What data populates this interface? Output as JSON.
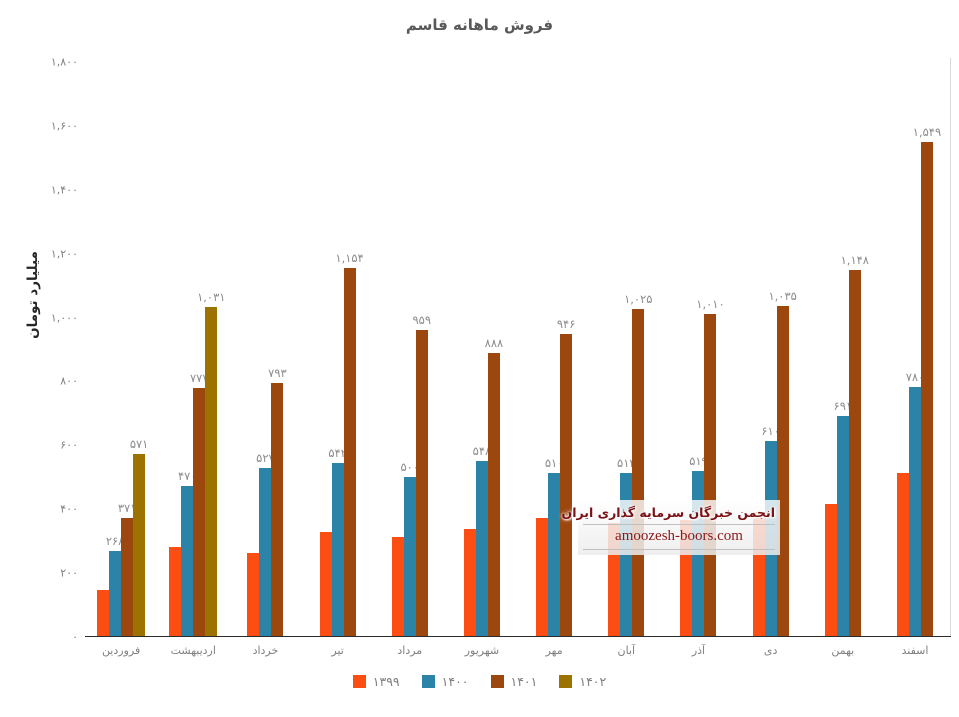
{
  "chart_data": {
    "type": "bar",
    "title": "فروش ماهانه قاسم",
    "ylabel": "میلیارد تومان",
    "categories": [
      "فروردین",
      "اردیبهشت",
      "خرداد",
      "تیر",
      "مرداد",
      "شهریور",
      "مهر",
      "آبان",
      "آذر",
      "دی",
      "بهمن",
      "اسفند"
    ],
    "ylim": [
      0,
      1800
    ],
    "grid": false,
    "legend_position": "bottom",
    "ytick_values": [
      0,
      200,
      400,
      600,
      800,
      1000,
      1200,
      1400,
      1600,
      1800
    ],
    "ytick_labels": [
      "۰",
      "۲۰۰",
      "۴۰۰",
      "۶۰۰",
      "۸۰۰",
      "۱,۰۰۰",
      "۱,۲۰۰",
      "۱,۴۰۰",
      "۱,۶۰۰",
      "۱,۸۰۰"
    ],
    "series": [
      {
        "key": "1399",
        "name": "۱۳۹۹",
        "color": "#FC4E12",
        "labels_shown": false,
        "values": [
          145,
          280,
          260,
          325,
          310,
          335,
          370,
          355,
          365,
          390,
          415,
          510
        ],
        "labels": [
          "",
          "",
          "",
          "",
          "",
          "",
          "",
          "",
          "",
          "",
          "",
          ""
        ]
      },
      {
        "key": "1400",
        "name": "۱۴۰۰",
        "color": "#2B83A8",
        "labels_shown": true,
        "values": [
          268,
          470,
          527,
          542,
          500,
          548,
          510,
          512,
          519,
          610,
          691,
          780
        ],
        "labels": [
          "۲۶۸",
          "۴۷۰",
          "۵۲۷",
          "۵۴۲",
          "۵۰۰",
          "۵۴۸",
          "۵۱۰",
          "۵۱۲",
          "۵۱۹",
          "۶۱۰",
          "۶۹۱",
          "۷۸۰"
        ]
      },
      {
        "key": "1401",
        "name": "۱۴۰۱",
        "color": "#9C470D",
        "labels_shown": true,
        "values": [
          371,
          777,
          793,
          1154,
          959,
          888,
          946,
          1025,
          1010,
          1035,
          1148,
          1549
        ],
        "labels": [
          "۳۷۱",
          "۷۷۷",
          "۷۹۳",
          "۱,۱۵۴",
          "۹۵۹",
          "۸۸۸",
          "۹۴۶",
          "۱,۰۲۵",
          "۱,۰۱۰",
          "۱,۰۳۵",
          "۱,۱۴۸",
          "۱,۵۴۹"
        ]
      },
      {
        "key": "1402",
        "name": "۱۴۰۲",
        "color": "#9C7300",
        "labels_shown": true,
        "values": [
          571,
          1031,
          null,
          null,
          null,
          null,
          null,
          null,
          null,
          null,
          null,
          null
        ],
        "labels": [
          "۵۷۱",
          "۱,۰۳۱",
          "",
          "",
          "",
          "",
          "",
          "",
          "",
          "",
          "",
          ""
        ]
      }
    ]
  },
  "watermark": {
    "title": "انجمن خبرگان سرمایه گذاری ایران",
    "url": "amoozesh-boors.com"
  }
}
